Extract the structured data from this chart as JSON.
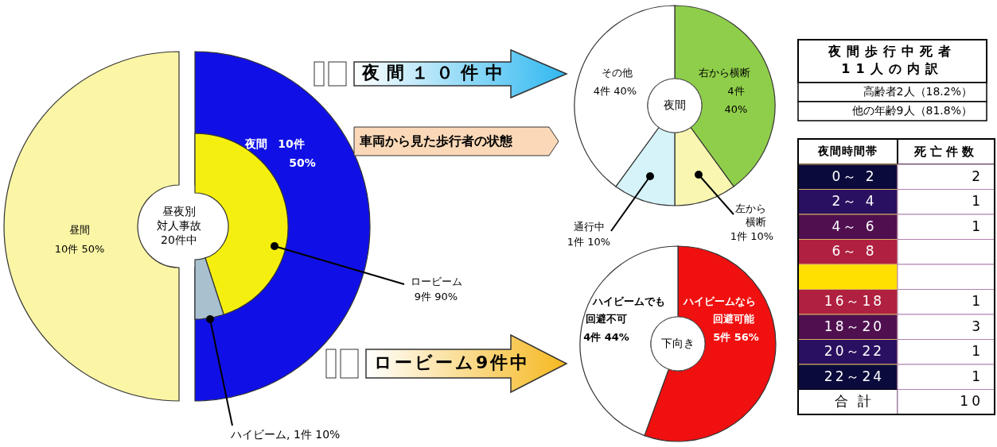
{
  "chart_data": [
    {
      "type": "donut",
      "categories": [
        "昼間",
        "夜間"
      ],
      "values": [
        10,
        10
      ],
      "value_labels": [
        "10件 50%",
        "10件 50%"
      ],
      "colors": [
        "#fbf5a6",
        "#1010e6"
      ],
      "annotations": [
        "昼夜別",
        "対人事故",
        "20件中"
      ]
    },
    {
      "type": "donut",
      "categories": [
        "ロービーム",
        "ハイビーム"
      ],
      "values": [
        9,
        1
      ],
      "value_labels": [
        "9件 90%",
        "1件 10%"
      ],
      "colors": [
        "#f5ef10",
        "#a9c1cf"
      ]
    },
    {
      "type": "donut",
      "title": "夜間１０件中",
      "subtitle": "車両から見た歩行者の状態",
      "categories": [
        "右から横断",
        "左から横断",
        "通行中",
        "その他"
      ],
      "values": [
        4,
        1,
        1,
        4
      ],
      "value_labels": [
        "4件 40%",
        "1件 10%",
        "1件 10%",
        "4件 40%"
      ],
      "colors": [
        "#8fce4a",
        "#f8f6b0",
        "#d5f3f8",
        "#ffffff"
      ],
      "annotations": [
        "夜間"
      ]
    },
    {
      "type": "donut",
      "title": "ロービーム9件中",
      "categories": [
        "ハイビームなら回避可能",
        "ハイビームでも回避不可"
      ],
      "values": [
        5,
        4
      ],
      "value_labels": [
        "5件 56%",
        "4件 44%"
      ],
      "colors": [
        "#f01010",
        "#ffffff"
      ],
      "annotations": [
        "下向き"
      ]
    },
    {
      "type": "other",
      "title": "夜間歩行中死者11人の内訳",
      "annotations": [
        "高齢者2人（18.2%）",
        "他の年齢9人（81.8%）"
      ]
    },
    {
      "type": "other",
      "ylabel": "夜間時間帯",
      "xlabel": "死亡件数",
      "categories": [
        "0～ 2",
        "2～ 4",
        "4～ 6",
        "6～ 8",
        null,
        "16～18",
        "18～20",
        "20～22",
        "22～24",
        "合 計"
      ],
      "values": [
        2,
        1,
        1,
        null,
        null,
        1,
        3,
        1,
        1,
        10
      ],
      "data_labels": true
    }
  ]
}
